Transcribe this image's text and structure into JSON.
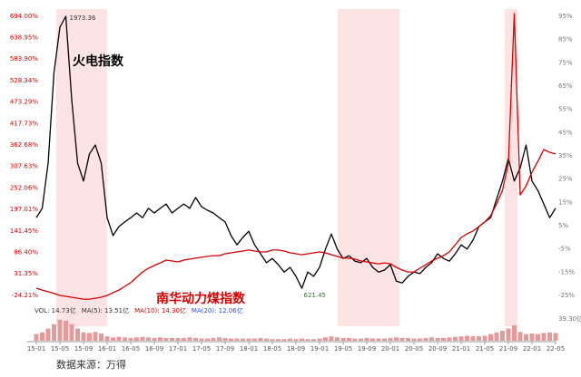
{
  "chart_data": [
    {
      "type": "line",
      "categories": [
        "15-01",
        null,
        null,
        null,
        "15-05",
        null,
        null,
        null,
        "15-09",
        null,
        null,
        null,
        "16-01",
        null,
        null,
        null,
        "16-05",
        null,
        null,
        null,
        "16-09",
        null,
        null,
        null,
        "17-01",
        null,
        null,
        null,
        "17-05",
        null,
        null,
        null,
        "17-09",
        null,
        null,
        null,
        "18-01",
        null,
        null,
        null,
        "18-05",
        null,
        null,
        null,
        "18-09",
        null,
        null,
        null,
        "19-01",
        null,
        null,
        null,
        "19-05",
        null,
        null,
        null,
        "19-09",
        null,
        null,
        null,
        "20-01",
        null,
        null,
        null,
        "20-05",
        null,
        null,
        null,
        "20-09",
        null,
        null,
        null,
        "21-01",
        null,
        null,
        null,
        "21-05",
        null,
        null,
        null,
        "21-09",
        null,
        null,
        null,
        "22-01",
        null,
        null,
        null,
        "22-05"
      ],
      "series": [
        {
          "name": "火电指数",
          "color": "#000000",
          "axis": "y",
          "values": [
            176,
            200,
            316,
            549,
            666,
            694,
            480,
            316,
            270,
            340,
            363,
            316,
            176,
            130,
            153,
            165,
            176,
            188,
            176,
            200,
            188,
            200,
            211,
            188,
            200,
            211,
            200,
            228,
            204,
            195,
            188,
            176,
            165,
            130,
            106,
            125,
            141,
            106,
            83,
            60,
            71,
            55,
            36,
            48,
            25,
            -6,
            36,
            25,
            48,
            95,
            134,
            95,
            71,
            78,
            64,
            60,
            71,
            48,
            36,
            41,
            55,
            13,
            8,
            25,
            36,
            32,
            48,
            60,
            83,
            71,
            64,
            83,
            106,
            95,
            118,
            153,
            165,
            176,
            223,
            270,
            328,
            270,
            304,
            363,
            270,
            246,
            211,
            176,
            200
          ]
        },
        {
          "name": "南华动力煤指数",
          "color": "#d40000",
          "axis": "y2",
          "values": [
            -21.9,
            -22.7,
            -23.4,
            -24.2,
            -25.0,
            -25.4,
            -25.8,
            -26.2,
            -26.6,
            -26.6,
            -26.2,
            -25.8,
            -25.0,
            -23.8,
            -22.7,
            -21.1,
            -19.5,
            -17.2,
            -14.9,
            -13.3,
            -12.1,
            -11.0,
            -9.8,
            -10.2,
            -10.6,
            -9.8,
            -9.4,
            -9.0,
            -8.6,
            -8.2,
            -7.9,
            -7.9,
            -7.1,
            -6.7,
            -6.3,
            -5.9,
            -5.5,
            -5.9,
            -6.3,
            -6.3,
            -5.5,
            -5.5,
            -5.9,
            -6.7,
            -7.1,
            -7.5,
            -7.1,
            -6.7,
            -6.3,
            -6.7,
            -7.5,
            -8.2,
            -9.0,
            -9.0,
            -9.4,
            -10.2,
            -10.6,
            -11.0,
            -11.4,
            -11.0,
            -11.4,
            -12.9,
            -14.1,
            -14.9,
            -14.9,
            -13.3,
            -11.8,
            -10.2,
            -9.0,
            -7.9,
            -6.3,
            -3.2,
            -0.1,
            1.5,
            2.7,
            4.6,
            6.6,
            9.3,
            14.3,
            20.2,
            31.9,
            96.2,
            18.2,
            22.1,
            28.0,
            32.7,
            37.7,
            36.5,
            35.8
          ]
        }
      ],
      "ylim": [
        -47.5,
        712.7
      ],
      "yticks": [
        {
          "value": 694.0,
          "label": "694.00%"
        },
        {
          "value": 638.95,
          "label": "638.95%"
        },
        {
          "value": 583.9,
          "label": "583.90%"
        },
        {
          "value": 528.34,
          "label": "528.34%"
        },
        {
          "value": 473.29,
          "label": "473.29%"
        },
        {
          "value": 417.73,
          "label": "417.73%"
        },
        {
          "value": 362.68,
          "label": "362.68%"
        },
        {
          "value": 307.63,
          "label": "307.63%"
        },
        {
          "value": 252.06,
          "label": "252.06%"
        },
        {
          "value": 197.01,
          "label": "197.01%"
        },
        {
          "value": 141.45,
          "label": "141.45%"
        },
        {
          "value": 86.4,
          "label": "86.40%"
        },
        {
          "value": 31.35,
          "label": "31.35%"
        },
        {
          "value": -24.21,
          "label": "-24.21%"
        }
      ],
      "y2lim": [
        -28.9,
        98.1
      ],
      "y2ticks": [
        {
          "value": 95,
          "label": "95%"
        },
        {
          "value": 85,
          "label": "85%"
        },
        {
          "value": 75,
          "label": "75%"
        },
        {
          "value": 65,
          "label": "65%"
        },
        {
          "value": 55,
          "label": "55%"
        },
        {
          "value": 45,
          "label": "45%"
        },
        {
          "value": 35,
          "label": "35%"
        },
        {
          "value": 25,
          "label": "25%"
        },
        {
          "value": 15,
          "label": "15%"
        },
        {
          "value": 5,
          "label": "5%"
        },
        {
          "value": -5,
          "label": "-5%"
        },
        {
          "value": -15,
          "label": "-15%"
        },
        {
          "value": -25,
          "label": "-25%"
        }
      ],
      "annotations": [
        "1973.36",
        "621.45"
      ],
      "source": "数据来源：万得"
    },
    {
      "type": "bar",
      "color": "#e39a9a",
      "indicators": [
        {
          "label": "VOL: 14.73亿",
          "color": "#333333"
        },
        {
          "label": "MA(5): 13.51亿",
          "color": "#333333"
        },
        {
          "label": "MA(10): 14.30亿",
          "color": "#d40000"
        },
        {
          "label": "MA(20): 12.06亿",
          "color": "#2b4fd4"
        }
      ],
      "values": [
        12,
        15,
        22,
        30,
        38,
        36,
        30,
        22,
        15,
        14,
        16,
        13,
        8,
        6,
        7,
        6,
        5,
        6,
        7,
        6,
        5,
        6,
        5,
        5,
        5,
        5,
        6,
        5,
        4,
        4,
        5,
        6,
        5,
        4,
        4,
        4,
        4,
        4,
        5,
        4,
        3,
        3,
        3,
        4,
        3,
        4,
        3,
        3,
        4,
        6,
        8,
        6,
        5,
        5,
        4,
        4,
        5,
        4,
        4,
        4,
        5,
        6,
        5,
        5,
        4,
        4,
        5,
        6,
        5,
        5,
        6,
        7,
        8,
        9,
        8,
        8,
        9,
        12,
        15,
        18,
        22,
        28,
        16,
        12,
        13,
        12,
        14,
        15,
        14
      ],
      "ylim": [
        0,
        39.3
      ],
      "yticks": [
        {
          "value": 39.3,
          "label": "39.30亿"
        }
      ]
    }
  ]
}
